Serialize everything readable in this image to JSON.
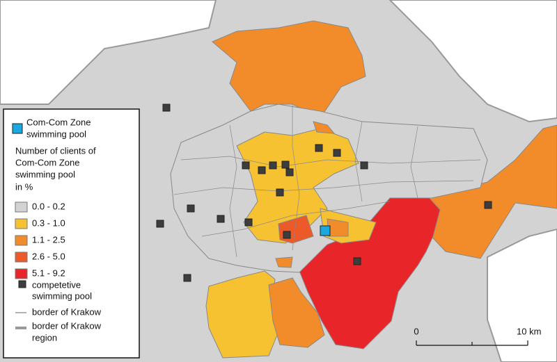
{
  "legend": {
    "pool_label": [
      "Com-Com Zone",
      "swimming pool"
    ],
    "title": [
      "Number of clients of",
      "Com-Com Zone",
      "swimming pool",
      " in %"
    ],
    "classes": [
      {
        "label": "0.0 - 0.2",
        "color": "#d3d3d3"
      },
      {
        "label": "0.3 - 1.0",
        "color": "#f6c232"
      },
      {
        "label": "1.1 - 2.5",
        "color": "#f28c2a"
      },
      {
        "label": "2.6 - 5.0",
        "color": "#ec5a2a"
      },
      {
        "label": "5.1 - 9.2",
        "color": "#e8262a"
      }
    ],
    "competitor_label": [
      "competetive",
      "swimming pool"
    ],
    "border_label": "border of Krakow",
    "region_border_label": [
      "border of Krakow",
      "region"
    ]
  },
  "scale_bar": {
    "start": "0",
    "end": "10 km"
  }
}
